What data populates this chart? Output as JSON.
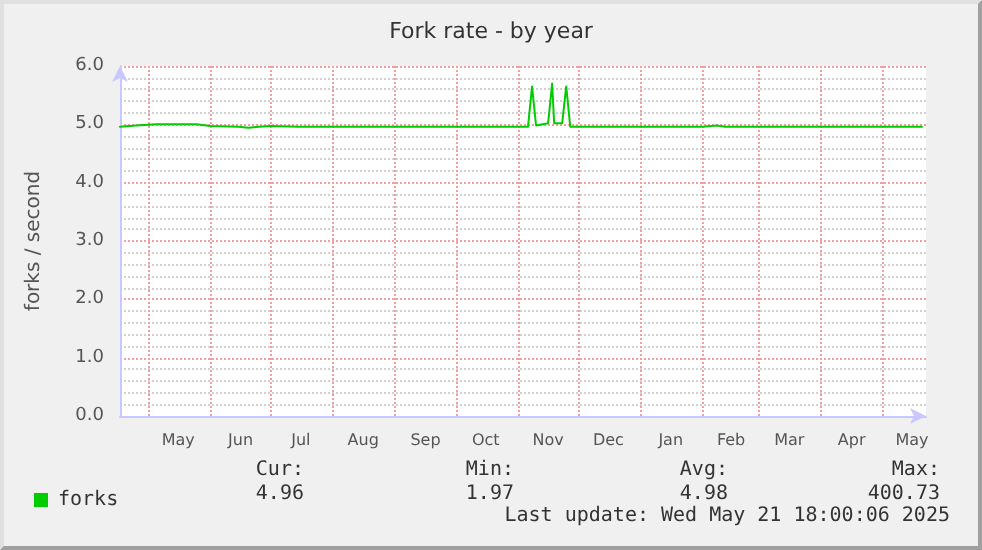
{
  "chart_data": {
    "type": "line",
    "title": "Fork rate - by year",
    "ylabel": "forks / second",
    "x": [
      "2024-04-17",
      "2024-04-25",
      "2024-05-05",
      "2024-05-15",
      "2024-05-25",
      "2024-06-01",
      "2024-06-15",
      "2024-06-20",
      "2024-06-25",
      "2024-07-01",
      "2024-07-15",
      "2024-08-01",
      "2024-08-15",
      "2024-09-01",
      "2024-09-15",
      "2024-10-01",
      "2024-10-15",
      "2024-10-28",
      "2024-11-06",
      "2024-11-08",
      "2024-11-10",
      "2024-11-16",
      "2024-11-18",
      "2024-11-19",
      "2024-11-23",
      "2024-11-25",
      "2024-11-27",
      "2024-12-15",
      "2025-01-15",
      "2025-02-01",
      "2025-02-08",
      "2025-02-12",
      "2025-03-15",
      "2025-04-15",
      "2025-05-21"
    ],
    "series": [
      {
        "name": "forks",
        "color": "#00cc00",
        "values": [
          4.96,
          4.98,
          5.0,
          5.0,
          5.0,
          4.97,
          4.96,
          4.94,
          4.96,
          4.97,
          4.96,
          4.96,
          4.96,
          4.96,
          4.96,
          4.96,
          4.96,
          4.96,
          4.96,
          5.65,
          4.98,
          5.02,
          5.7,
          5.02,
          5.02,
          5.65,
          4.96,
          4.96,
          4.96,
          4.96,
          4.98,
          4.96,
          4.96,
          4.96,
          4.96
        ]
      }
    ],
    "xlim": [
      "2024-04-17",
      "2025-05-23"
    ],
    "xticks": [
      {
        "value": "2024-05-01",
        "label": null
      },
      {
        "value": "2024-05-16",
        "label": "May"
      },
      {
        "value": "2024-06-01",
        "label": null
      },
      {
        "value": "2024-06-16",
        "label": "Jun"
      },
      {
        "value": "2024-07-01",
        "label": null
      },
      {
        "value": "2024-07-16",
        "label": "Jul"
      },
      {
        "value": "2024-08-01",
        "label": null
      },
      {
        "value": "2024-08-16",
        "label": "Aug"
      },
      {
        "value": "2024-09-01",
        "label": null
      },
      {
        "value": "2024-09-16",
        "label": "Sep"
      },
      {
        "value": "2024-10-01",
        "label": null
      },
      {
        "value": "2024-10-16",
        "label": "Oct"
      },
      {
        "value": "2024-11-01",
        "label": null
      },
      {
        "value": "2024-11-16",
        "label": "Nov"
      },
      {
        "value": "2024-12-01",
        "label": null
      },
      {
        "value": "2024-12-16",
        "label": "Dec"
      },
      {
        "value": "2025-01-01",
        "label": null
      },
      {
        "value": "2025-01-16",
        "label": "Jan"
      },
      {
        "value": "2025-02-01",
        "label": null
      },
      {
        "value": "2025-02-15",
        "label": "Feb"
      },
      {
        "value": "2025-03-01",
        "label": null
      },
      {
        "value": "2025-03-16",
        "label": "Mar"
      },
      {
        "value": "2025-04-01",
        "label": null
      },
      {
        "value": "2025-04-16",
        "label": "Apr"
      },
      {
        "value": "2025-05-01",
        "label": null
      },
      {
        "value": "2025-05-16",
        "label": "May"
      }
    ],
    "ylim": [
      0,
      6
    ],
    "yticks": [
      {
        "value": 0,
        "label": "0.0"
      },
      {
        "value": 0.2,
        "label": null
      },
      {
        "value": 0.4,
        "label": null
      },
      {
        "value": 0.6,
        "label": null
      },
      {
        "value": 0.8,
        "label": null
      },
      {
        "value": 1,
        "label": "1.0"
      },
      {
        "value": 1.2,
        "label": null
      },
      {
        "value": 1.4,
        "label": null
      },
      {
        "value": 1.6,
        "label": null
      },
      {
        "value": 1.8,
        "label": null
      },
      {
        "value": 2,
        "label": "2.0"
      },
      {
        "value": 2.2,
        "label": null
      },
      {
        "value": 2.4,
        "label": null
      },
      {
        "value": 2.6,
        "label": null
      },
      {
        "value": 2.8,
        "label": null
      },
      {
        "value": 3,
        "label": "3.0"
      },
      {
        "value": 3.2,
        "label": null
      },
      {
        "value": 3.4,
        "label": null
      },
      {
        "value": 3.6,
        "label": null
      },
      {
        "value": 3.8,
        "label": null
      },
      {
        "value": 4,
        "label": "4.0"
      },
      {
        "value": 4.2,
        "label": null
      },
      {
        "value": 4.4,
        "label": null
      },
      {
        "value": 4.6,
        "label": null
      },
      {
        "value": 4.8,
        "label": null
      },
      {
        "value": 5,
        "label": "5.0"
      },
      {
        "value": 5.2,
        "label": null
      },
      {
        "value": 5.4,
        "label": null
      },
      {
        "value": 5.6,
        "label": null
      },
      {
        "value": 5.8,
        "label": null
      },
      {
        "value": 6,
        "label": "6.0"
      }
    ],
    "grid": true,
    "legend": "bottom left",
    "marker": "none",
    "line_style": "solid",
    "annotations": [
      "Cur:",
      "4.96",
      "Min:",
      "1.97",
      "Avg:",
      "4.98",
      "Max:",
      "400.73",
      "Last update: Wed May 21 18:00:06 2025"
    ]
  }
}
